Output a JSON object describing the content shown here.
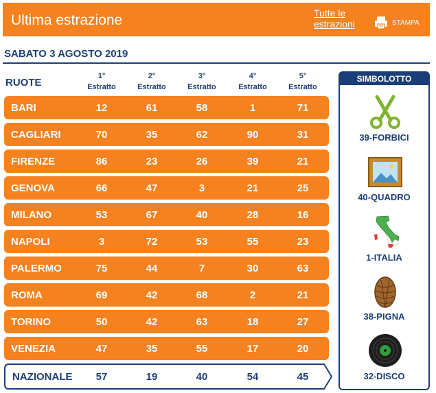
{
  "header": {
    "title": "Ultima estrazione",
    "all_link_line1": "Tutte le",
    "all_link_line2": "estrazioni",
    "print_label": "STAMPA"
  },
  "date": "SABATO 3 AGOSTO 2019",
  "ruote_label": "RUOTE",
  "columns": [
    {
      "ord": "1°",
      "label": "Estratto"
    },
    {
      "ord": "2°",
      "label": "Estratto"
    },
    {
      "ord": "3°",
      "label": "Estratto"
    },
    {
      "ord": "4°",
      "label": "Estratto"
    },
    {
      "ord": "5°",
      "label": "Estratto"
    }
  ],
  "rows": [
    {
      "city": "BARI",
      "nums": [
        "12",
        "61",
        "58",
        "1",
        "71"
      ]
    },
    {
      "city": "CAGLIARI",
      "nums": [
        "70",
        "35",
        "62",
        "90",
        "31"
      ]
    },
    {
      "city": "FIRENZE",
      "nums": [
        "86",
        "23",
        "26",
        "39",
        "21"
      ]
    },
    {
      "city": "GENOVA",
      "nums": [
        "66",
        "47",
        "3",
        "21",
        "25"
      ]
    },
    {
      "city": "MILANO",
      "nums": [
        "53",
        "67",
        "40",
        "28",
        "16"
      ]
    },
    {
      "city": "NAPOLI",
      "nums": [
        "3",
        "72",
        "53",
        "55",
        "23"
      ]
    },
    {
      "city": "PALERMO",
      "nums": [
        "75",
        "44",
        "7",
        "30",
        "63"
      ]
    },
    {
      "city": "ROMA",
      "nums": [
        "69",
        "42",
        "68",
        "2",
        "21"
      ]
    },
    {
      "city": "TORINO",
      "nums": [
        "50",
        "42",
        "63",
        "18",
        "27"
      ]
    },
    {
      "city": "VENEZIA",
      "nums": [
        "47",
        "35",
        "55",
        "17",
        "20"
      ]
    }
  ],
  "nazionale": {
    "city": "NAZIONALE",
    "nums": [
      "57",
      "19",
      "40",
      "54",
      "45"
    ]
  },
  "simbolotto": {
    "title": "SIMBOLOTTO",
    "items": [
      {
        "label": "39-FORBICI",
        "icon": "scissors-icon"
      },
      {
        "label": "40-QUADRO",
        "icon": "picture-frame-icon"
      },
      {
        "label": "1-ITALIA",
        "icon": "italy-map-icon"
      },
      {
        "label": "38-PIGNA",
        "icon": "pinecone-icon"
      },
      {
        "label": "32-DISCO",
        "icon": "vinyl-record-icon"
      }
    ]
  },
  "colors": {
    "orange": "#f5821f",
    "navy": "#1c3e78",
    "white": "#ffffff"
  }
}
